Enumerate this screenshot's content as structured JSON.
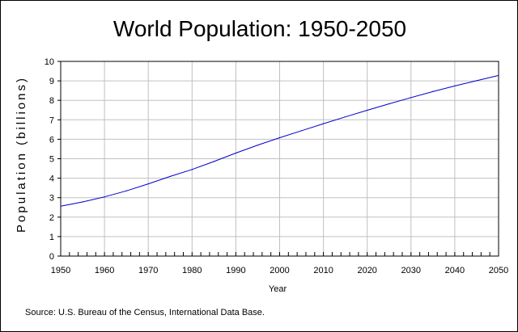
{
  "chart_data": {
    "type": "line",
    "title": "World Population: 1950-2050",
    "xlabel": "Year",
    "ylabel": "Population (billions)",
    "xlim": [
      1950,
      2050
    ],
    "ylim": [
      0,
      10
    ],
    "x_ticks": [
      "1950",
      "1960",
      "1970",
      "1980",
      "1990",
      "2000",
      "2010",
      "2020",
      "2030",
      "2040",
      "2050"
    ],
    "y_ticks": [
      "0",
      "1",
      "2",
      "3",
      "4",
      "5",
      "6",
      "7",
      "8",
      "9",
      "10"
    ],
    "grid": true,
    "line_color": "#0000cc",
    "series": [
      {
        "x": [
          1950,
          1955,
          1960,
          1965,
          1970,
          1975,
          1980,
          1985,
          1990,
          1995,
          2000,
          2005,
          2010,
          2015,
          2020,
          2025,
          2030,
          2035,
          2040,
          2045,
          2050
        ],
        "values": [
          2.56,
          2.78,
          3.04,
          3.35,
          3.71,
          4.09,
          4.45,
          4.86,
          5.29,
          5.7,
          6.08,
          6.44,
          6.8,
          7.15,
          7.49,
          7.82,
          8.14,
          8.45,
          8.74,
          9.01,
          9.28
        ]
      }
    ],
    "source": "Source: U.S. Bureau of the Census, International Data Base."
  }
}
